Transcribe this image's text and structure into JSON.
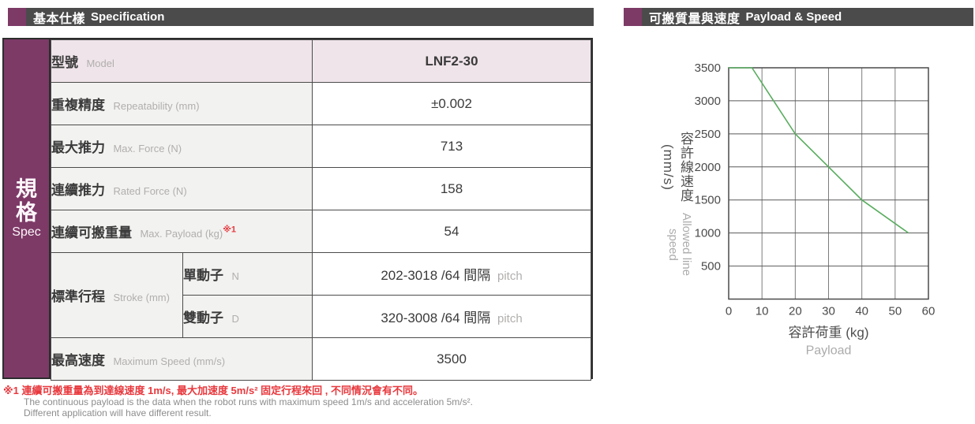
{
  "page": {
    "left_header": {
      "zh": "基本仕樣",
      "en": "Specification"
    },
    "right_header": {
      "zh": "可搬質量與速度",
      "en": "Payload & Speed"
    },
    "sidebar": {
      "zh1": "規",
      "zh2": "格",
      "en": "Spec"
    }
  },
  "spec_table": {
    "model": {
      "zh": "型號",
      "en": "Model",
      "value": "LNF2-30"
    },
    "repeatability": {
      "zh": "重複精度",
      "en": "Repeatability (mm)",
      "value": "±0.002"
    },
    "max_force": {
      "zh": "最大推力",
      "en": "Max. Force (N)",
      "value": "713"
    },
    "rated_force": {
      "zh": "連續推力",
      "en": "Rated Force (N)",
      "value": "158"
    },
    "payload": {
      "zh": "連續可搬重量",
      "en": "Max. Payload (kg)",
      "note": "※1",
      "value": "54"
    },
    "stroke": {
      "zh": "標準行程",
      "en": "Stroke (mm)",
      "single": {
        "zh": "單動子",
        "en": "N",
        "value": "202-3018 /64 間隔",
        "suffix": "pitch"
      },
      "double": {
        "zh": "雙動子",
        "en": "D",
        "value": "320-3008 /64 間隔",
        "suffix": "pitch"
      }
    },
    "max_speed": {
      "zh": "最高速度",
      "en": "Maximum Speed (mm/s)",
      "value": "3500"
    }
  },
  "footnotes": {
    "red": "※1 連續可搬重量為到達線速度 1m/s, 最大加速度 5m/s² 固定行程來回 , 不同情況會有不同。",
    "en1": "The continuous payload is the data when the robot runs with maximum speed 1m/s and acceleration 5m/s².",
    "en2": "Different application will have different result."
  },
  "chart_data": {
    "type": "line",
    "title": "可搬質量與速度 Payload & Speed",
    "series": [
      {
        "name": "allowed-line-speed",
        "points": [
          [
            0,
            3500
          ],
          [
            7,
            3500
          ],
          [
            20,
            2500
          ],
          [
            40,
            1500
          ],
          [
            54,
            1000
          ]
        ],
        "color": "#58ac5e"
      }
    ],
    "xlabel_zh": "容許荷重 (kg)",
    "xlabel_en": "Payload",
    "ylabel_zh": "容許線速度 (mm/s)",
    "ylabel_en": "Allowed line speed",
    "xlim": [
      0,
      60
    ],
    "ylim": [
      0,
      3500
    ],
    "xticks": [
      0,
      10,
      20,
      30,
      40,
      50,
      60
    ],
    "yticks": [
      500,
      1000,
      1500,
      2000,
      2500,
      3000,
      3500
    ],
    "grid": true,
    "legend": false
  },
  "colors": {
    "accent_purple": "#7d3a67",
    "header_gray": "#4b4b4b",
    "row_pink": "#efe4ea",
    "cell_gray": "#f2f2f0",
    "note_red": "#e8383d",
    "line_green": "#58ac5e",
    "grid_gray": "#595959"
  }
}
